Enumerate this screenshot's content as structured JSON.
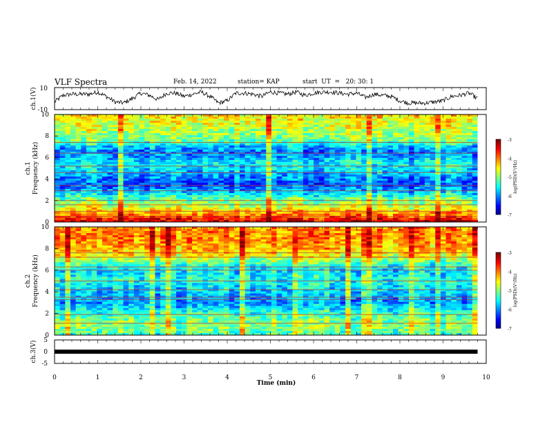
{
  "header": {
    "title": "VLF Spectra",
    "date": "Feb. 14, 2022",
    "station": "station= KAP",
    "start": "start  UT  =   20: 30: 1"
  },
  "chart_data": [
    {
      "type": "line",
      "panel": "ch1-waveform",
      "ylabel": "ch.1(V)",
      "ytick_labels": [
        "10",
        "-10"
      ],
      "ylim": [
        -10,
        10
      ],
      "xlim": [
        0,
        10
      ],
      "series_color": "#000000",
      "x": [
        0,
        0.2,
        0.4,
        0.6,
        0.8,
        1.0,
        1.2,
        1.4,
        1.6,
        1.8,
        2.0,
        2.2,
        2.4,
        2.6,
        2.8,
        3.0,
        3.2,
        3.4,
        3.6,
        3.8,
        4.0,
        4.2,
        4.4,
        4.6,
        4.8,
        5.0,
        5.2,
        5.4,
        5.6,
        5.8,
        6.0,
        6.2,
        6.4,
        6.6,
        6.8,
        7.0,
        7.2,
        7.4,
        7.6,
        7.8,
        8.0,
        8.2,
        8.4,
        8.6,
        8.8,
        9.0,
        9.2,
        9.4,
        9.6,
        9.8
      ],
      "y": [
        -3,
        3,
        4,
        4,
        4,
        6,
        2,
        -3,
        -4,
        0,
        5,
        3,
        -1,
        5,
        5,
        2,
        4,
        6,
        2,
        -4,
        -2,
        5,
        5,
        4,
        2,
        6,
        5,
        4,
        6,
        3,
        5,
        6,
        6,
        5,
        4,
        5,
        1,
        4,
        3,
        2,
        -2,
        -4,
        -4,
        -4,
        -3,
        -2,
        2,
        3,
        5,
        0
      ]
    },
    {
      "type": "heatmap",
      "panel": "ch1-spectrogram",
      "ylabel_lines": [
        "ch.1",
        "Frequency (kHz)"
      ],
      "ytick_labels": [
        "0",
        "2",
        "4",
        "6",
        "8",
        "10"
      ],
      "ylim": [
        0,
        10
      ],
      "xlim": [
        0,
        10
      ],
      "colorbar": {
        "label": "log(PSD)(V²/Hz)",
        "tick_labels": [
          "-3",
          "-4",
          "-5",
          "-6",
          "-7"
        ],
        "range": [
          -7,
          -3
        ]
      },
      "freq_profile": [
        {
          "f": 0.2,
          "v": -3.4
        },
        {
          "f": 0.6,
          "v": -3.9
        },
        {
          "f": 1.0,
          "v": -4.3
        },
        {
          "f": 1.5,
          "v": -4.7
        },
        {
          "f": 2.0,
          "v": -5.0
        },
        {
          "f": 2.5,
          "v": -5.4
        },
        {
          "f": 3.0,
          "v": -5.9
        },
        {
          "f": 3.5,
          "v": -6.2
        },
        {
          "f": 4.0,
          "v": -6.0
        },
        {
          "f": 4.5,
          "v": -5.8
        },
        {
          "f": 5.0,
          "v": -5.6
        },
        {
          "f": 5.5,
          "v": -5.5
        },
        {
          "f": 6.0,
          "v": -5.8
        },
        {
          "f": 6.5,
          "v": -6.0
        },
        {
          "f": 7.0,
          "v": -5.7
        },
        {
          "f": 7.5,
          "v": -5.1
        },
        {
          "f": 8.0,
          "v": -4.9
        },
        {
          "f": 8.5,
          "v": -4.8
        },
        {
          "f": 9.0,
          "v": -4.6
        },
        {
          "f": 9.5,
          "v": -4.5
        },
        {
          "f": 10.0,
          "v": -4.4
        }
      ],
      "lines_khz": [
        0.5,
        1.0,
        1.6,
        2.0,
        2.9,
        3.4,
        4.6,
        5.2,
        6.4,
        7.4
      ]
    },
    {
      "type": "heatmap",
      "panel": "ch2-spectrogram",
      "ylabel_lines": [
        "ch.2",
        "Frequency (kHz)"
      ],
      "ytick_labels": [
        "0",
        "2",
        "4",
        "6",
        "8",
        "10"
      ],
      "ylim": [
        0,
        10
      ],
      "xlim": [
        0,
        10
      ],
      "colorbar": {
        "label": "log(PSD)(V²/Hz)",
        "tick_labels": [
          "-3",
          "-4",
          "-5",
          "-6",
          "-7"
        ],
        "range": [
          -7,
          -3
        ]
      },
      "freq_profile": [
        {
          "f": 0.2,
          "v": -5.2
        },
        {
          "f": 0.6,
          "v": -5.0
        },
        {
          "f": 1.0,
          "v": -5.0
        },
        {
          "f": 1.5,
          "v": -5.1
        },
        {
          "f": 2.0,
          "v": -5.3
        },
        {
          "f": 2.5,
          "v": -5.6
        },
        {
          "f": 3.0,
          "v": -5.9
        },
        {
          "f": 3.5,
          "v": -5.8
        },
        {
          "f": 4.0,
          "v": -5.7
        },
        {
          "f": 4.5,
          "v": -5.6
        },
        {
          "f": 5.0,
          "v": -5.4
        },
        {
          "f": 5.5,
          "v": -5.5
        },
        {
          "f": 6.0,
          "v": -5.6
        },
        {
          "f": 6.5,
          "v": -5.3
        },
        {
          "f": 7.0,
          "v": -4.8
        },
        {
          "f": 7.5,
          "v": -4.4
        },
        {
          "f": 8.0,
          "v": -4.2
        },
        {
          "f": 8.5,
          "v": -4.1
        },
        {
          "f": 9.0,
          "v": -4.0
        },
        {
          "f": 9.5,
          "v": -4.0
        },
        {
          "f": 10.0,
          "v": -4.1
        }
      ],
      "lines_khz": [
        1.1,
        1.9,
        3.3,
        3.5,
        4.2,
        5.0,
        6.0,
        6.3,
        7.2,
        7.6
      ]
    },
    {
      "type": "line",
      "panel": "ch3-waveform",
      "ylabel": "ch.3(V)",
      "ytick_labels": [
        "5",
        "0",
        "-5"
      ],
      "ylim": [
        -5,
        5
      ],
      "xlim": [
        0,
        10
      ],
      "xlabel": "Time  (min)",
      "xtick_labels": [
        "0",
        "1",
        "2",
        "3",
        "4",
        "5",
        "6",
        "7",
        "8",
        "9",
        "10"
      ],
      "series_color": "#000000",
      "x": [
        0,
        9.8
      ],
      "y": [
        0,
        0
      ]
    }
  ]
}
